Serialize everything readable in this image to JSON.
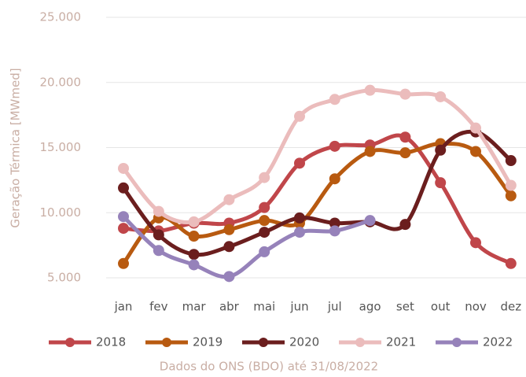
{
  "chart_data": {
    "type": "line",
    "y_label": "Geração Térmica [MWmed]",
    "footer": "Dados do ONS (BDO) até 31/08/2022",
    "categories": [
      "jan",
      "fev",
      "mar",
      "abr",
      "mai",
      "jun",
      "jul",
      "ago",
      "set",
      "out",
      "nov",
      "dez"
    ],
    "ylim": [
      5000,
      25000
    ],
    "yticks": [
      {
        "value": 5000,
        "label": "5.000"
      },
      {
        "value": 10000,
        "label": "10.000"
      },
      {
        "value": 15000,
        "label": "15.000"
      },
      {
        "value": 20000,
        "label": "20.000"
      },
      {
        "value": 25000,
        "label": "25.000"
      }
    ],
    "grid": true,
    "series": [
      {
        "name": "2018",
        "color": "#c0464a",
        "values": [
          8800,
          8600,
          9200,
          9200,
          10400,
          13800,
          15100,
          15200,
          15800,
          12300,
          7700,
          6100
        ]
      },
      {
        "name": "2019",
        "color": "#b85a10",
        "values": [
          6100,
          9600,
          8200,
          8700,
          9400,
          9200,
          12600,
          14700,
          14600,
          15300,
          14700,
          11300
        ]
      },
      {
        "name": "2020",
        "color": "#6b1e1e",
        "values": [
          11900,
          8300,
          6800,
          7400,
          8500,
          9600,
          9200,
          9300,
          9100,
          14800,
          16200,
          14000
        ]
      },
      {
        "name": "2021",
        "color": "#ebbcbc",
        "values": [
          13400,
          10100,
          9300,
          11000,
          12700,
          17400,
          18700,
          19400,
          19100,
          18900,
          16500,
          12100
        ]
      },
      {
        "name": "2022",
        "color": "#9682ba",
        "values": [
          9700,
          7100,
          6000,
          5100,
          7000,
          8500,
          8600,
          9400,
          null,
          null,
          null,
          null
        ]
      }
    ]
  }
}
